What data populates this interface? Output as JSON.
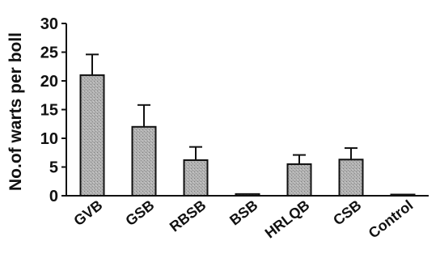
{
  "chart_data": {
    "type": "bar",
    "ylabel": "No.of warts per boll",
    "categories": [
      "GVB",
      "GSB",
      "RBSB",
      "BSB",
      "HRLQB",
      "CSB",
      "Control"
    ],
    "values": [
      21,
      12,
      6.2,
      0.3,
      5.5,
      6.3,
      0.1
    ],
    "errors": [
      3.6,
      3.8,
      2.3,
      0,
      1.6,
      2.0,
      0
    ],
    "ylim": [
      0,
      30
    ],
    "yticks": [
      "0",
      "5",
      "10",
      "15",
      "20",
      "25",
      "30"
    ],
    "grid": false,
    "legend": "none",
    "bar_color": "#a9a9a9"
  }
}
